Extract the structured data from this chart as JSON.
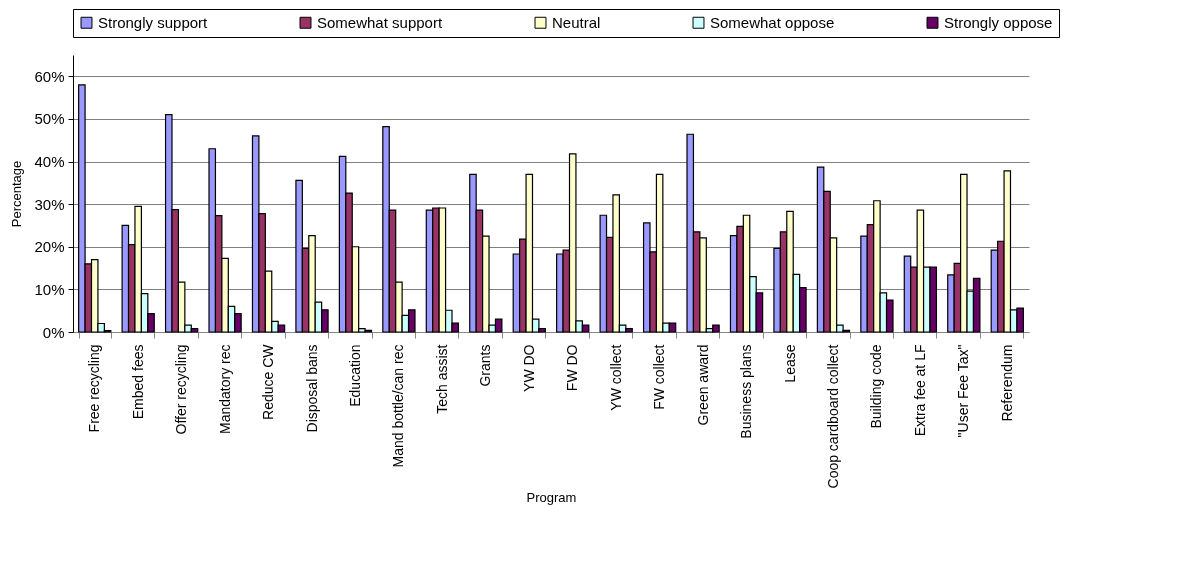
{
  "chart_data": {
    "type": "bar",
    "xlabel": "Program",
    "ylabel": "Percentage",
    "categories": [
      "Free recycling",
      "Embed fees",
      "Offer recycling",
      "Mandatory rec",
      "Reduce CW",
      "Disposal bans",
      "Education",
      "Mand bottle/can rec",
      "Tech assist",
      "Grants",
      "YW DO",
      "FW DO",
      "YW collect",
      "FW collect",
      "Green award",
      "Business plans",
      "Lease",
      "Coop cardboard collect",
      "Building code",
      "Extra fee at LF",
      "\"User Fee Tax\"",
      "Referendum"
    ],
    "series": [
      {
        "name": "Strongly support",
        "color": "#9999ff",
        "values": [
          58,
          25,
          51,
          43,
          46,
          35.6,
          41.2,
          48.2,
          28.6,
          37,
          18.3,
          18.3,
          27.4,
          25.6,
          46.4,
          22.6,
          19.6,
          38.7,
          22.5,
          17.8,
          13.4,
          19.2
        ]
      },
      {
        "name": "Somewhat support",
        "color": "#993366",
        "values": [
          16,
          20.5,
          28.7,
          27.3,
          27.8,
          19.6,
          32.6,
          28.6,
          29.1,
          28.6,
          21.8,
          19.2,
          22.2,
          18.8,
          23.5,
          24.8,
          23.5,
          33,
          25.2,
          15.2,
          16.1,
          21.3
        ]
      },
      {
        "name": "Neutral",
        "color": "#ffffcc",
        "values": [
          17,
          29.5,
          11.7,
          17.3,
          14.3,
          22.6,
          20,
          11.7,
          29.1,
          22.5,
          37,
          41.8,
          32.2,
          37,
          22.1,
          27.4,
          28.3,
          22.1,
          30.8,
          28.6,
          37,
          37.8
        ]
      },
      {
        "name": "Somewhat oppose",
        "color": "#ccffff",
        "values": [
          2,
          9,
          1.6,
          6,
          2.5,
          7,
          0.8,
          3.9,
          5.1,
          1.6,
          3,
          2.6,
          1.6,
          2.1,
          0.8,
          13,
          13.5,
          1.6,
          9.2,
          15.2,
          9.6,
          5.2
        ]
      },
      {
        "name": "Strongly oppose",
        "color": "#660066",
        "values": [
          0.3,
          4.3,
          0.8,
          4.3,
          1.6,
          5.2,
          0.4,
          5.2,
          2.1,
          3,
          0.8,
          1.6,
          0.8,
          2.1,
          1.6,
          9.2,
          10.4,
          0.4,
          7.5,
          15.2,
          12.6,
          5.6
        ]
      }
    ],
    "ylim": [
      0,
      65
    ],
    "yticks": [
      {
        "value": 0,
        "label": "0%"
      },
      {
        "value": 10,
        "label": "10%"
      },
      {
        "value": 20,
        "label": "20%"
      },
      {
        "value": 30,
        "label": "30%"
      },
      {
        "value": 40,
        "label": "40%"
      },
      {
        "value": 50,
        "label": "50%"
      },
      {
        "value": 60,
        "label": "60%"
      }
    ],
    "grid": "y",
    "legend": "top"
  }
}
